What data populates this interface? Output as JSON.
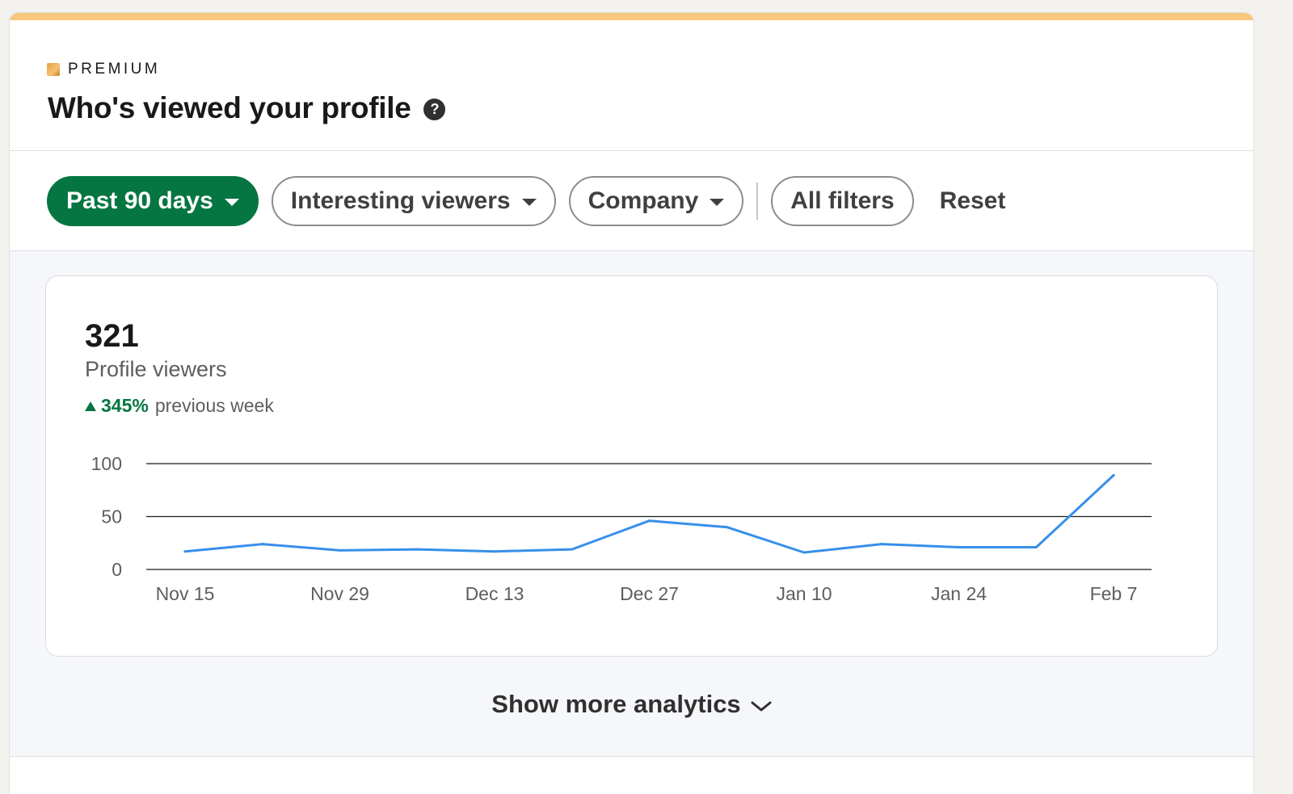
{
  "premium": {
    "label": "PREMIUM",
    "icon": "premium-badge-icon",
    "color": "#e7a33e"
  },
  "header": {
    "title": "Who's viewed your profile",
    "help_icon": "help-icon",
    "help_glyph": "?"
  },
  "filters": {
    "time_range": "Past 90 days",
    "interesting_viewers": "Interesting viewers",
    "company": "Company",
    "all_filters": "All filters",
    "reset": "Reset",
    "active_color": "#057642"
  },
  "summary": {
    "count": "321",
    "label": "Profile viewers",
    "change_pct": "345%",
    "change_text": "previous week",
    "change_color": "#057642"
  },
  "chart_data": {
    "type": "line",
    "title": "",
    "xlabel": "",
    "ylabel": "",
    "ylim": [
      0,
      100
    ],
    "yticks": [
      0,
      50,
      100
    ],
    "x_tick_labels": [
      "Nov 15",
      "Nov 29",
      "Dec 13",
      "Dec 27",
      "Jan 10",
      "Jan 24",
      "Feb 7"
    ],
    "grid": true,
    "line_color": "#378fe9",
    "series": [
      {
        "name": "Profile viewers",
        "values": [
          17,
          24,
          18,
          19,
          17,
          19,
          46,
          40,
          16,
          24,
          21,
          21,
          89
        ]
      }
    ]
  },
  "footer": {
    "show_more": "Show more analytics",
    "chevron_icon": "chevron-down-icon"
  }
}
